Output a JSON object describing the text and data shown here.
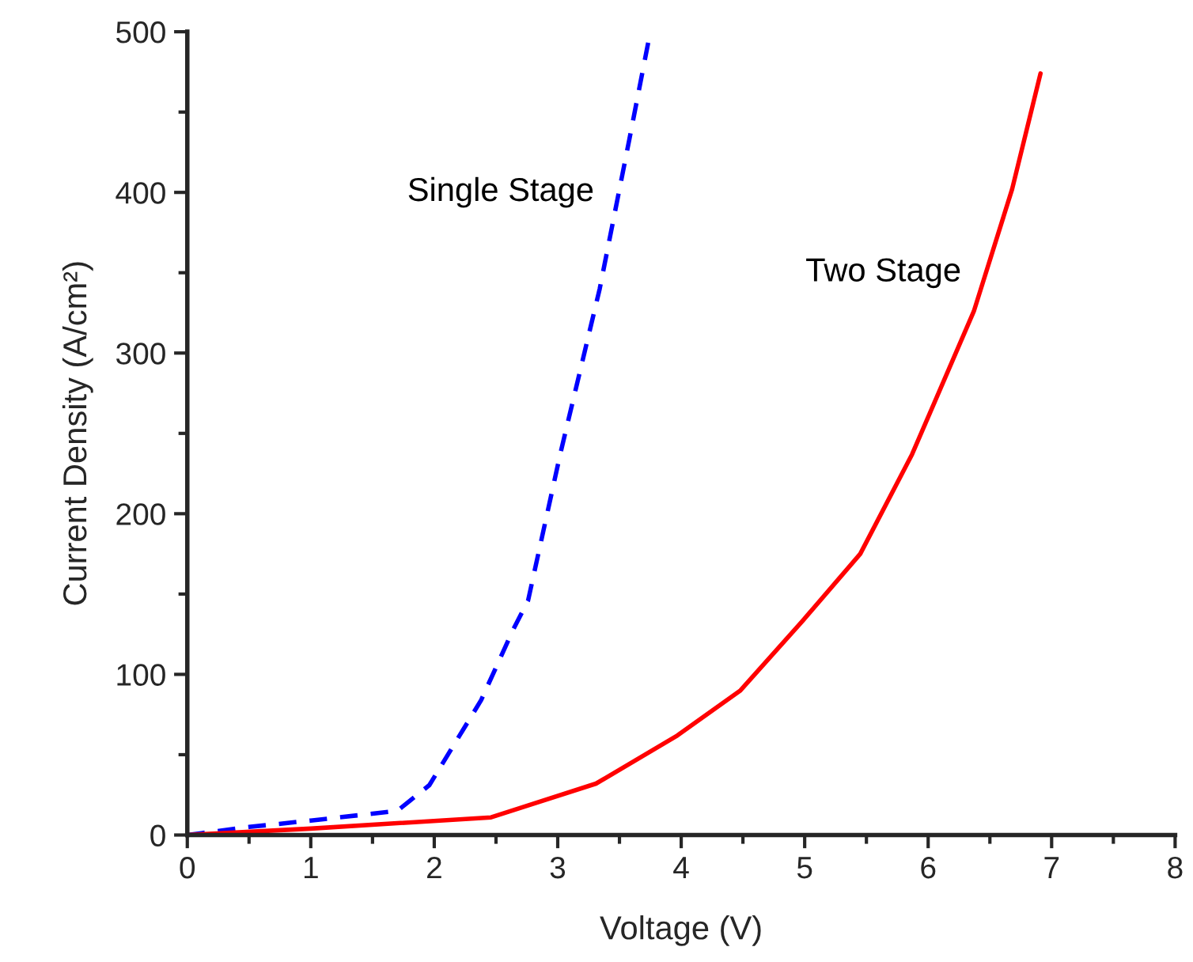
{
  "chart_data": {
    "type": "line",
    "xlabel": "Voltage (V)",
    "ylabel": "Current Density (A/cm²)",
    "xlim": [
      0,
      8
    ],
    "ylim": [
      0,
      500
    ],
    "xticks": [
      0,
      1,
      2,
      3,
      4,
      5,
      6,
      7,
      8
    ],
    "yticks": [
      0,
      100,
      200,
      300,
      400,
      500
    ],
    "grid": false,
    "legend": false,
    "series": [
      {
        "name": "Single Stage",
        "color": "#0000ff",
        "line_style": "dashed",
        "x": [
          0,
          0.5,
          1.0,
          1.7,
          1.96,
          2.38,
          2.64,
          2.76,
          3.02,
          3.34,
          3.58,
          3.75
        ],
        "values": [
          0,
          5,
          9,
          15,
          31,
          84,
          128,
          146,
          237,
          340,
          433,
          500
        ]
      },
      {
        "name": "Two Stage",
        "color": "#ff0000",
        "line_style": "solid",
        "x": [
          0,
          1.0,
          2.46,
          3.31,
          3.97,
          4.48,
          4.98,
          5.45,
          5.87,
          6.37,
          6.68,
          6.91
        ],
        "values": [
          0,
          4,
          11,
          32,
          62,
          90,
          133,
          175,
          237,
          326,
          402,
          474
        ]
      }
    ]
  }
}
